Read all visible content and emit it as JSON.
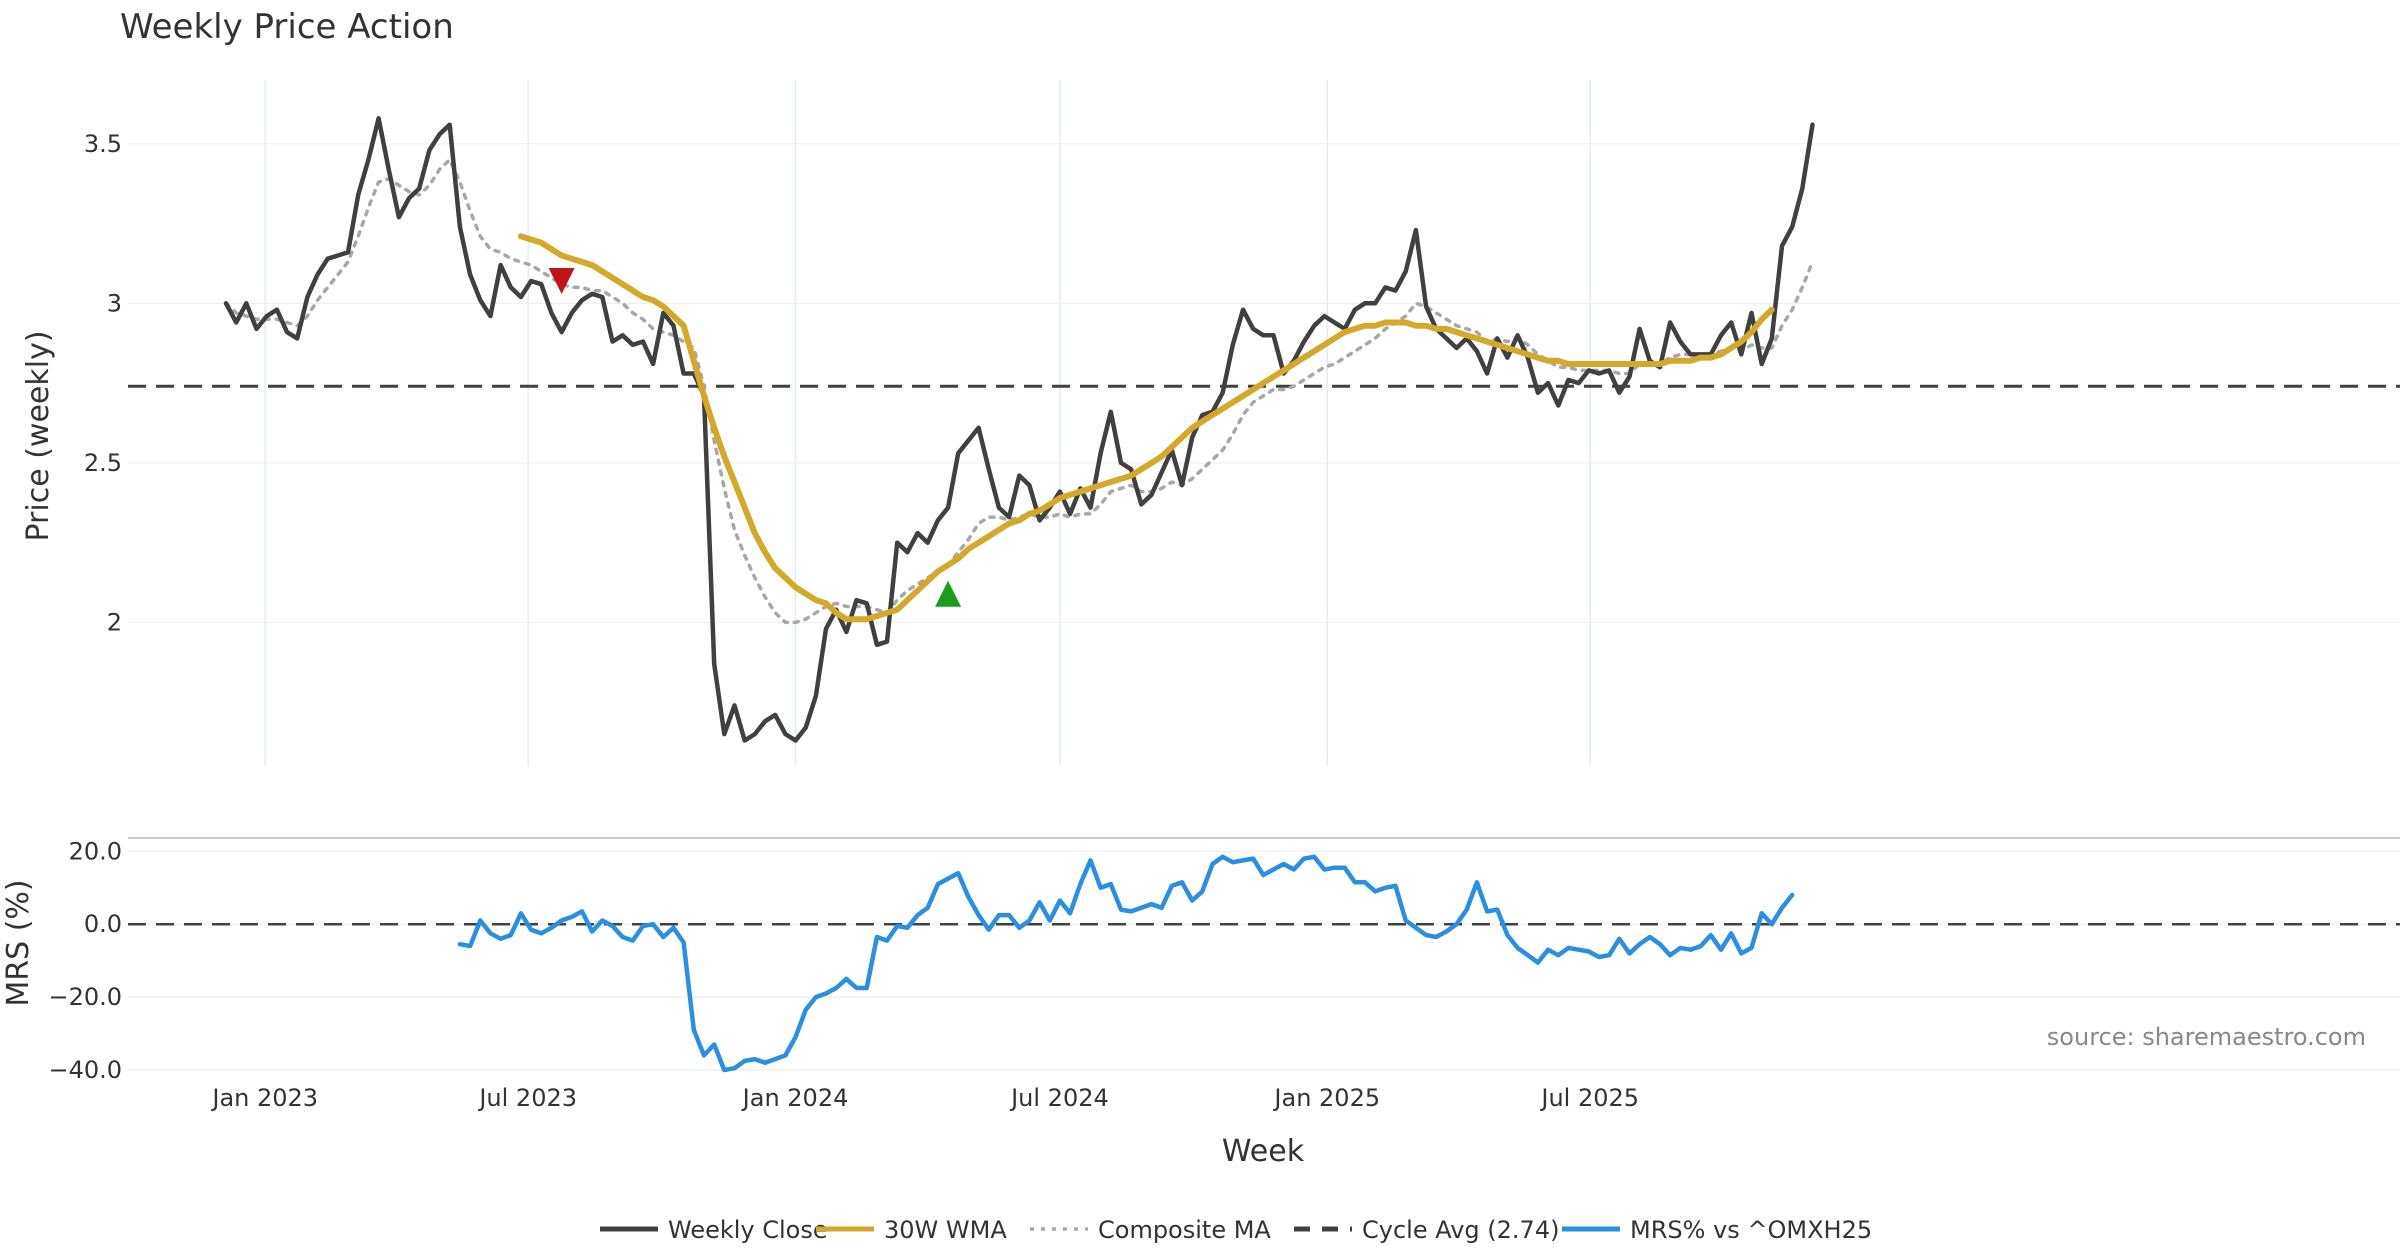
{
  "chart_data": [
    {
      "type": "line",
      "title": "Weekly Price Action",
      "ylabel": "Price (weekly)",
      "ylim": [
        1.55,
        3.7
      ],
      "y_ticks": [
        "2",
        "2.5",
        "3",
        "3.5"
      ],
      "x_start": "2022-12-05",
      "x_step_days": 7,
      "x_ticks": [
        "Jan 2023",
        "Jul 2023",
        "Jan 2024",
        "Jul 2024",
        "Jan 2025",
        "Jul 2025"
      ],
      "grid": true,
      "series": [
        {
          "name": "Weekly Close",
          "color": "#404040",
          "style": "solid",
          "start_index": 0,
          "values": [
            3.0,
            2.94,
            3.0,
            2.92,
            2.96,
            2.98,
            2.91,
            2.89,
            3.02,
            3.09,
            3.14,
            3.15,
            3.16,
            3.34,
            3.45,
            3.58,
            3.42,
            3.27,
            3.33,
            3.36,
            3.48,
            3.53,
            3.56,
            3.24,
            3.09,
            3.01,
            2.96,
            3.12,
            3.05,
            3.02,
            3.07,
            3.06,
            2.97,
            2.91,
            2.97,
            3.01,
            3.03,
            3.02,
            2.88,
            2.9,
            2.87,
            2.88,
            2.81,
            2.97,
            2.93,
            2.78,
            2.78,
            2.71,
            1.87,
            1.65,
            1.74,
            1.63,
            1.65,
            1.69,
            1.71,
            1.65,
            1.63,
            1.67,
            1.77,
            1.98,
            2.04,
            1.97,
            2.07,
            2.06,
            1.93,
            1.94,
            2.25,
            2.22,
            2.28,
            2.25,
            2.32,
            2.36,
            2.53,
            2.57,
            2.61,
            2.48,
            2.36,
            2.33,
            2.46,
            2.43,
            2.32,
            2.36,
            2.41,
            2.34,
            2.42,
            2.36,
            2.53,
            2.66,
            2.5,
            2.48,
            2.37,
            2.4,
            2.47,
            2.54,
            2.43,
            2.58,
            2.65,
            2.66,
            2.72,
            2.87,
            2.98,
            2.92,
            2.9,
            2.9,
            2.78,
            2.82,
            2.88,
            2.93,
            2.96,
            2.94,
            2.92,
            2.98,
            3.0,
            3.0,
            3.05,
            3.04,
            3.1,
            3.23,
            2.99,
            2.92,
            2.89,
            2.86,
            2.89,
            2.85,
            2.78,
            2.89,
            2.83,
            2.9,
            2.83,
            2.72,
            2.75,
            2.68,
            2.76,
            2.75,
            2.79,
            2.78,
            2.79,
            2.72,
            2.77,
            2.92,
            2.82,
            2.8,
            2.94,
            2.88,
            2.84,
            2.84,
            2.84,
            2.9,
            2.94,
            2.84,
            2.97,
            2.81,
            2.89,
            3.18,
            3.24,
            3.36,
            3.56
          ]
        },
        {
          "name": "30W WMA",
          "color": "#d4a82a",
          "style": "solid",
          "start_index": 29,
          "values": [
            3.21,
            3.2,
            3.19,
            3.17,
            3.15,
            3.14,
            3.13,
            3.12,
            3.1,
            3.08,
            3.06,
            3.04,
            3.02,
            3.01,
            2.99,
            2.96,
            2.93,
            2.82,
            2.71,
            2.61,
            2.52,
            2.44,
            2.36,
            2.28,
            2.22,
            2.17,
            2.14,
            2.11,
            2.09,
            2.07,
            2.06,
            2.03,
            2.01,
            2.01,
            2.01,
            2.02,
            2.03,
            2.04,
            2.07,
            2.1,
            2.13,
            2.16,
            2.18,
            2.2,
            2.23,
            2.25,
            2.27,
            2.29,
            2.31,
            2.32,
            2.34,
            2.35,
            2.37,
            2.39,
            2.4,
            2.41,
            2.42,
            2.43,
            2.44,
            2.45,
            2.46,
            2.48,
            2.5,
            2.52,
            2.55,
            2.58,
            2.61,
            2.63,
            2.65,
            2.67,
            2.69,
            2.71,
            2.73,
            2.75,
            2.77,
            2.79,
            2.81,
            2.83,
            2.85,
            2.87,
            2.89,
            2.91,
            2.92,
            2.93,
            2.93,
            2.94,
            2.94,
            2.94,
            2.93,
            2.93,
            2.92,
            2.92,
            2.91,
            2.9,
            2.89,
            2.88,
            2.87,
            2.86,
            2.85,
            2.84,
            2.83,
            2.82,
            2.82,
            2.81,
            2.81,
            2.81,
            2.81,
            2.81,
            2.81,
            2.81,
            2.81,
            2.81,
            2.81,
            2.82,
            2.82,
            2.82,
            2.83,
            2.83,
            2.84,
            2.86,
            2.88,
            2.91,
            2.95,
            2.98
          ]
        },
        {
          "name": "Composite MA",
          "color": "#a8a8a8",
          "style": "dotted",
          "start_index": 0,
          "values": [
            3.0,
            2.97,
            2.96,
            2.95,
            2.95,
            2.95,
            2.94,
            2.93,
            2.96,
            3.01,
            3.05,
            3.09,
            3.13,
            3.21,
            3.3,
            3.38,
            3.39,
            3.37,
            3.35,
            3.34,
            3.37,
            3.42,
            3.45,
            3.38,
            3.29,
            3.21,
            3.17,
            3.16,
            3.14,
            3.13,
            3.12,
            3.1,
            3.08,
            3.06,
            3.05,
            3.05,
            3.04,
            3.04,
            3.02,
            3.0,
            2.97,
            2.95,
            2.92,
            2.91,
            2.9,
            2.88,
            2.86,
            2.74,
            2.57,
            2.42,
            2.29,
            2.21,
            2.14,
            2.08,
            2.03,
            2.0,
            2.0,
            2.01,
            2.03,
            2.05,
            2.06,
            2.05,
            2.05,
            2.05,
            2.04,
            2.03,
            2.07,
            2.1,
            2.12,
            2.14,
            2.16,
            2.18,
            2.22,
            2.26,
            2.31,
            2.33,
            2.33,
            2.32,
            2.33,
            2.34,
            2.33,
            2.33,
            2.34,
            2.33,
            2.34,
            2.34,
            2.37,
            2.41,
            2.42,
            2.43,
            2.41,
            2.41,
            2.42,
            2.44,
            2.43,
            2.45,
            2.48,
            2.51,
            2.54,
            2.59,
            2.65,
            2.69,
            2.71,
            2.73,
            2.73,
            2.74,
            2.76,
            2.78,
            2.8,
            2.81,
            2.83,
            2.85,
            2.87,
            2.89,
            2.92,
            2.94,
            2.96,
            3.0,
            2.99,
            2.97,
            2.95,
            2.93,
            2.92,
            2.91,
            2.88,
            2.89,
            2.88,
            2.89,
            2.87,
            2.84,
            2.82,
            2.8,
            2.8,
            2.79,
            2.79,
            2.79,
            2.79,
            2.78,
            2.78,
            2.81,
            2.81,
            2.81,
            2.83,
            2.84,
            2.84,
            2.84,
            2.84,
            2.85,
            2.86,
            2.85,
            2.87,
            2.86,
            2.86,
            2.93,
            2.98,
            3.05,
            3.13
          ]
        }
      ],
      "reference_lines": [
        {
          "name": "Cycle Avg (2.74)",
          "value": 2.74,
          "color": "#404040",
          "style": "dashed"
        }
      ],
      "markers": [
        {
          "type": "sell",
          "shape": "down-triangle",
          "color": "#c0141a",
          "x_index": 33,
          "y": 3.07
        },
        {
          "type": "buy",
          "shape": "up-triangle",
          "color": "#1a9e1a",
          "x_index": 71,
          "y": 2.09
        }
      ]
    },
    {
      "type": "line",
      "title": "",
      "xlabel": "Week",
      "ylabel": "MRS (%)",
      "ylim": [
        -40,
        22
      ],
      "y_ticks": [
        "−40.0",
        "−20.0",
        "0.0",
        "20.0"
      ],
      "x_ticks": [
        "Jan 2023",
        "Jul 2023",
        "Jan 2024",
        "Jul 2024",
        "Jan 2025",
        "Jul 2025"
      ],
      "grid": true,
      "series": [
        {
          "name": "MRS% vs ^OMXH25",
          "color": "#2a8fe0",
          "style": "solid",
          "start_index": 23,
          "values": [
            -5.5,
            -6,
            1,
            -2.5,
            -4,
            -3,
            3,
            -1.5,
            -2.5,
            -1,
            1,
            2,
            3.5,
            -2,
            1,
            -0.5,
            -3.5,
            -4.5,
            -0.5,
            0,
            -3.5,
            -1,
            -5,
            -29,
            -36,
            -33,
            -40,
            -39.5,
            -37.5,
            -37,
            -38,
            -37,
            -36,
            -31,
            -23.5,
            -20,
            -19,
            -17.5,
            -15,
            -17.5,
            -17.5,
            -3.5,
            -4.5,
            -0.5,
            -1,
            2.5,
            4.5,
            11,
            12.5,
            14,
            7.5,
            2.5,
            -1.5,
            2.5,
            2.5,
            -1,
            1,
            6,
            1,
            6.5,
            3,
            11,
            17.5,
            10,
            11,
            4,
            3.5,
            4.5,
            5.5,
            4.5,
            10.5,
            11.5,
            6.5,
            9,
            16.5,
            18.5,
            17,
            17.5,
            18,
            13.5,
            15,
            16.5,
            15,
            18,
            18.5,
            15,
            15.5,
            15.5,
            11.5,
            11.5,
            9,
            10,
            10.5,
            1,
            -1,
            -3,
            -3.5,
            -2,
            0,
            4,
            11.5,
            3.5,
            4,
            -3,
            -6.5,
            -8.5,
            -10.5,
            -7,
            -8.5,
            -6.5,
            -7,
            -7.5,
            -9,
            -8.5,
            -4,
            -8,
            -5.5,
            -3.5,
            -5.5,
            -8.5,
            -6.5,
            -7,
            -6,
            -3,
            -7,
            -2.5,
            -8,
            -6.5,
            3,
            0,
            4.5,
            8
          ]
        }
      ],
      "reference_lines": [
        {
          "name": "zero",
          "value": 0,
          "color": "#404040",
          "style": "dashed"
        }
      ]
    }
  ],
  "legend": [
    {
      "label": "Weekly Close",
      "color": "#404040",
      "style": "solid"
    },
    {
      "label": "30W WMA",
      "color": "#d4a82a",
      "style": "solid"
    },
    {
      "label": "Composite MA",
      "color": "#a8a8a8",
      "style": "dotted"
    },
    {
      "label": "Cycle Avg (2.74)",
      "color": "#404040",
      "style": "dashed"
    },
    {
      "label": "MRS% vs ^OMXH25",
      "color": "#2a8fe0",
      "style": "solid"
    }
  ],
  "legend_position": "bottom-center",
  "source_text": "source: sharemaestro.com"
}
